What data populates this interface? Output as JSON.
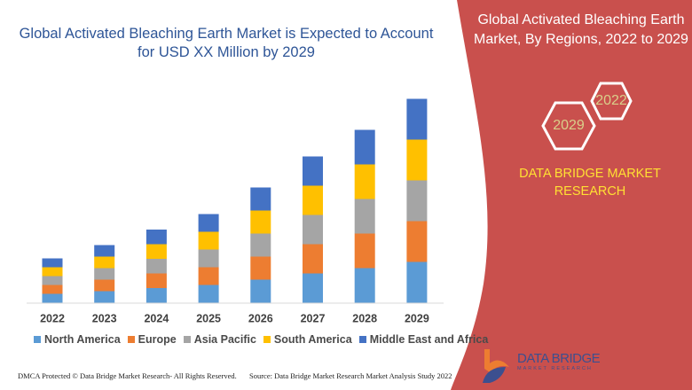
{
  "title": "Global Activated Bleaching Earth Market is Expected to Account for USD XX Million by 2029",
  "side_panel": {
    "title": "Global Activated Bleaching Earth Market,  By Regions, 2022 to 2029",
    "hex_start": "2022",
    "hex_end": "2029",
    "brand": "DATA BRIDGE MARKET RESEARCH",
    "color": "#c9504d"
  },
  "chart_data": {
    "type": "bar",
    "stacked": true,
    "title": "Global Activated Bleaching Earth Market is Expected to Account for USD XX Million by 2029",
    "categories": [
      "2022",
      "2023",
      "2024",
      "2025",
      "2026",
      "2027",
      "2028",
      "2029"
    ],
    "series": [
      {
        "name": "North America",
        "color": "#5b9bd5",
        "values": [
          10,
          13,
          16.5,
          20,
          26,
          33,
          39,
          46
        ]
      },
      {
        "name": "Europe",
        "color": "#ed7d31",
        "values": [
          10,
          13,
          16.5,
          20,
          26,
          33,
          39,
          46
        ]
      },
      {
        "name": "Asia Pacific",
        "color": "#a5a5a5",
        "values": [
          10,
          13,
          16.5,
          20,
          26,
          33,
          39,
          46
        ]
      },
      {
        "name": "South America",
        "color": "#ffc000",
        "values": [
          10,
          13,
          16.5,
          20,
          26,
          33,
          39,
          46
        ]
      },
      {
        "name": "Middle East and Africa",
        "color": "#4472c4",
        "values": [
          10,
          13,
          16.5,
          20,
          26,
          33,
          39,
          46
        ]
      }
    ],
    "xlabel": "",
    "ylabel": "",
    "y_axis_shown": false,
    "grid": false,
    "legend": "bottom"
  },
  "footer": {
    "dmca": "DMCA Protected © Data Bridge Market Research- All Rights Reserved.",
    "source": "Source: Data Bridge Market Research Market Analysis Study 2022"
  },
  "logo": {
    "text": "DATA BRIDGE",
    "sub": "MARKET RESEARCH"
  }
}
